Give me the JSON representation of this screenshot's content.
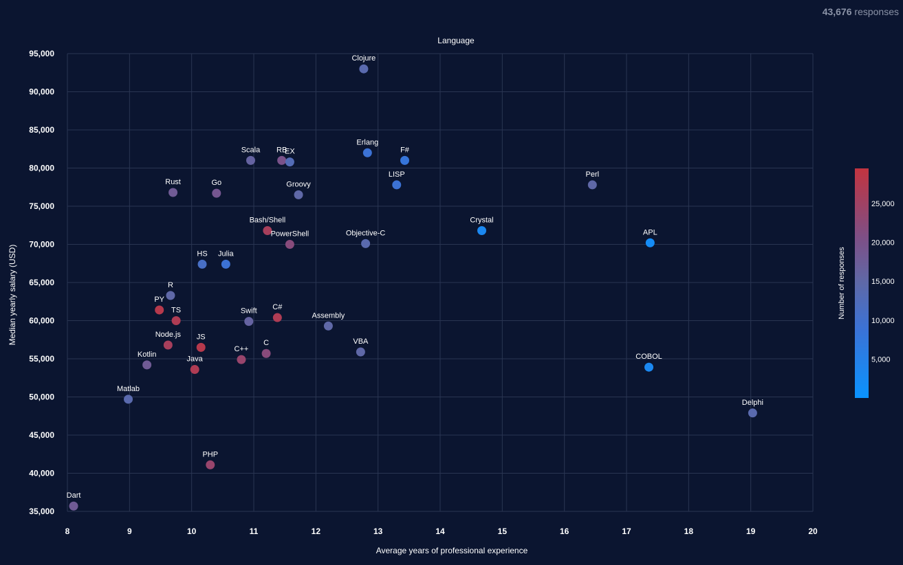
{
  "header": {
    "response_count": "43,676",
    "response_word": "responses"
  },
  "colors": {
    "background": "#0b1530",
    "grid": "#2a3552",
    "text": "#ffffff",
    "scale_low": "#0a93ff",
    "scale_mid": "#5e69a8",
    "scale_high": "#c23440"
  },
  "chart_data": {
    "type": "scatter",
    "title": "Language",
    "xlabel": "Average years of professional experience",
    "ylabel": "Median yearly salary (USD)",
    "xlim": [
      8,
      20
    ],
    "ylim": [
      35000,
      95000
    ],
    "xticks": [
      8,
      9,
      10,
      11,
      12,
      13,
      14,
      15,
      16,
      17,
      18,
      19,
      20
    ],
    "xtick_labels": [
      "8",
      "9",
      "10",
      "11",
      "12",
      "13",
      "14",
      "15",
      "16",
      "17",
      "18",
      "19",
      "20"
    ],
    "yticks": [
      35000,
      40000,
      45000,
      50000,
      55000,
      60000,
      65000,
      70000,
      75000,
      80000,
      85000,
      90000,
      95000
    ],
    "ytick_labels": [
      "35,000",
      "40,000",
      "45,000",
      "50,000",
      "55,000",
      "60,000",
      "65,000",
      "70,000",
      "75,000",
      "80,000",
      "85,000",
      "90,000",
      "95,000"
    ],
    "colorbar": {
      "title": "Number of responses",
      "range": [
        0,
        29500
      ],
      "ticks": [
        5000,
        10000,
        15000,
        20000,
        25000
      ],
      "tick_labels": [
        "5,000",
        "10,000",
        "15,000",
        "20,000",
        "25,000"
      ]
    },
    "points": [
      {
        "label": "Clojure",
        "x": 12.77,
        "y": 93000,
        "responses": 14000
      },
      {
        "label": "Scala",
        "x": 10.95,
        "y": 81000,
        "responses": 16000
      },
      {
        "label": "RB",
        "x": 11.45,
        "y": 81000,
        "responses": 20000
      },
      {
        "label": "EX",
        "x": 11.58,
        "y": 80800,
        "responses": 13000
      },
      {
        "label": "Erlang",
        "x": 12.83,
        "y": 82000,
        "responses": 9000
      },
      {
        "label": "F#",
        "x": 13.43,
        "y": 81000,
        "responses": 8000
      },
      {
        "label": "LISP",
        "x": 13.3,
        "y": 77800,
        "responses": 9000
      },
      {
        "label": "Perl",
        "x": 16.45,
        "y": 77800,
        "responses": 15000
      },
      {
        "label": "Rust",
        "x": 9.7,
        "y": 76800,
        "responses": 18000
      },
      {
        "label": "Go",
        "x": 10.4,
        "y": 76700,
        "responses": 19000
      },
      {
        "label": "Groovy",
        "x": 11.72,
        "y": 76500,
        "responses": 15000
      },
      {
        "label": "Bash/Shell",
        "x": 11.22,
        "y": 71800,
        "responses": 26000
      },
      {
        "label": "PowerShell",
        "x": 11.58,
        "y": 70000,
        "responses": 22000
      },
      {
        "label": "Objective-C",
        "x": 12.8,
        "y": 70100,
        "responses": 14000
      },
      {
        "label": "Crystal",
        "x": 14.67,
        "y": 71800,
        "responses": 3000
      },
      {
        "label": "APL",
        "x": 17.38,
        "y": 70200,
        "responses": 2000
      },
      {
        "label": "HS",
        "x": 10.17,
        "y": 67400,
        "responses": 11000
      },
      {
        "label": "Julia",
        "x": 10.55,
        "y": 67400,
        "responses": 9000
      },
      {
        "label": "R",
        "x": 9.66,
        "y": 63300,
        "responses": 15000
      },
      {
        "label": "PY",
        "x": 9.48,
        "y": 61400,
        "responses": 28000
      },
      {
        "label": "TS",
        "x": 9.75,
        "y": 60000,
        "responses": 27000
      },
      {
        "label": "Swift",
        "x": 10.92,
        "y": 59900,
        "responses": 16000
      },
      {
        "label": "C#",
        "x": 11.38,
        "y": 60400,
        "responses": 27000
      },
      {
        "label": "Assembly",
        "x": 12.2,
        "y": 59300,
        "responses": 15000
      },
      {
        "label": "Node.js",
        "x": 9.62,
        "y": 56800,
        "responses": 26000
      },
      {
        "label": "JS",
        "x": 10.15,
        "y": 56500,
        "responses": 28000
      },
      {
        "label": "Kotlin",
        "x": 9.28,
        "y": 54200,
        "responses": 18000
      },
      {
        "label": "Java",
        "x": 10.05,
        "y": 53600,
        "responses": 27000
      },
      {
        "label": "C++",
        "x": 10.8,
        "y": 54900,
        "responses": 24000
      },
      {
        "label": "C",
        "x": 11.2,
        "y": 55700,
        "responses": 22000
      },
      {
        "label": "VBA",
        "x": 12.72,
        "y": 55900,
        "responses": 15000
      },
      {
        "label": "COBOL",
        "x": 17.36,
        "y": 53900,
        "responses": 3000
      },
      {
        "label": "Matlab",
        "x": 8.98,
        "y": 49700,
        "responses": 14000
      },
      {
        "label": "Delphi",
        "x": 19.03,
        "y": 47900,
        "responses": 14000
      },
      {
        "label": "PHP",
        "x": 10.3,
        "y": 41100,
        "responses": 24000
      },
      {
        "label": "Dart",
        "x": 8.1,
        "y": 35700,
        "responses": 18000
      }
    ]
  }
}
